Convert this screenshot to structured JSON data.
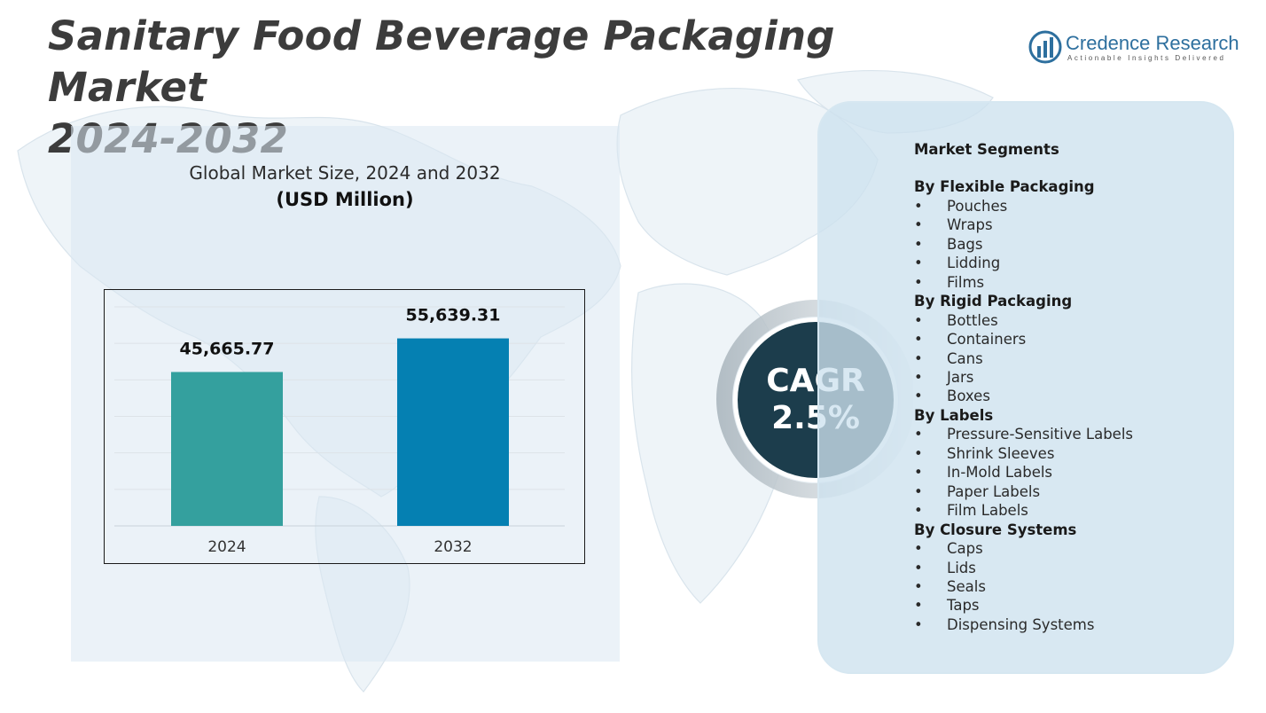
{
  "header": {
    "title_line1": "Sanitary Food Beverage Packaging Market",
    "title_line2": "2024-2032"
  },
  "logo": {
    "name": "Credence Research",
    "tagline": "Actionable Insights Delivered",
    "brand_color": "#2d6f9e"
  },
  "chart_data": {
    "type": "bar",
    "title": "Global Market Size, 2024 and 2032",
    "subtitle": "(USD Million)",
    "categories": [
      "2024",
      "2032"
    ],
    "values": [
      45665.77,
      55639.31
    ],
    "value_labels": [
      "45,665.77",
      "55,639.31"
    ],
    "colors": [
      "#34a09e",
      "#0580b2"
    ],
    "ylim": [
      0,
      65000
    ],
    "grid": true
  },
  "cagr": {
    "label": "CAGR",
    "value": "2.5%"
  },
  "segments": {
    "heading": "Market Segments",
    "groups": [
      {
        "title": "By Flexible Packaging",
        "items": [
          "Pouches",
          "Wraps",
          "Bags",
          "Lidding",
          "Films"
        ]
      },
      {
        "title": "By Rigid Packaging",
        "items": [
          "Bottles",
          "Containers",
          "Cans",
          "Jars",
          "Boxes"
        ]
      },
      {
        "title": "By Labels",
        "items": [
          "Pressure-Sensitive Labels",
          "Shrink Sleeves",
          "In-Mold Labels",
          "Paper Labels",
          "Film Labels"
        ]
      },
      {
        "title": "By Closure Systems",
        "items": [
          "Caps",
          "Lids",
          "Seals",
          "Taps",
          "Dispensing Systems"
        ]
      }
    ],
    "bullet": "•"
  }
}
